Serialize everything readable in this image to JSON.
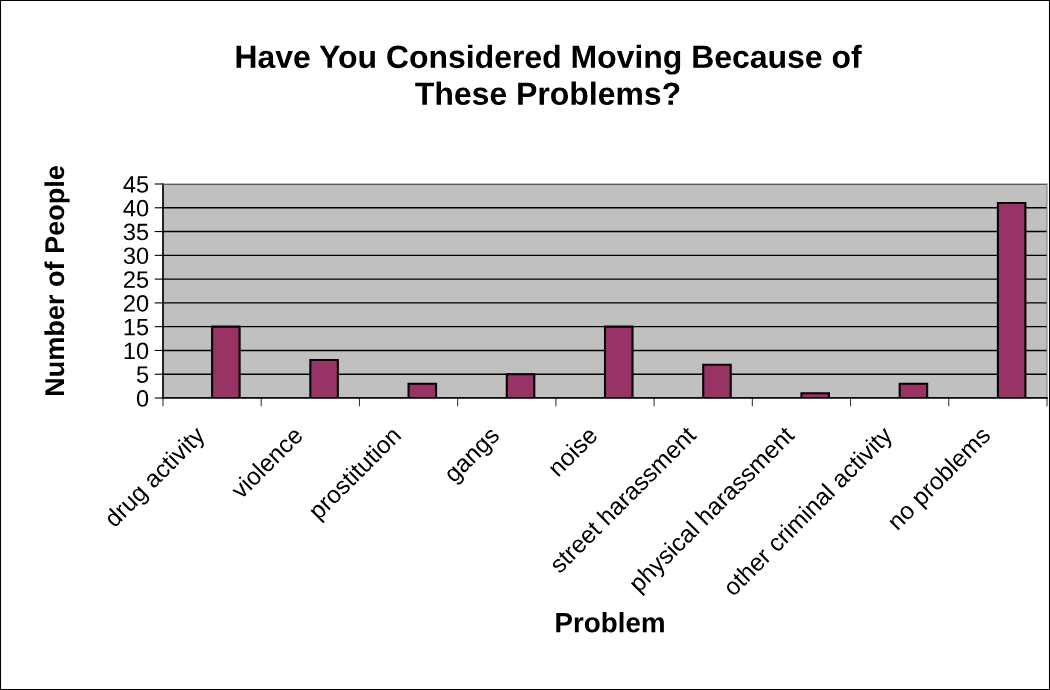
{
  "chart_data": {
    "type": "bar",
    "title": "Have You Considered Moving Because of\nThese Problems?",
    "xlabel": "Problem",
    "ylabel": "Number of People",
    "categories": [
      "drug activity",
      "violence",
      "prostitution",
      "gangs",
      "noise",
      "street harassment",
      "physical harassment",
      "other criminal activity",
      "no problems"
    ],
    "values": [
      15,
      8,
      3,
      5,
      15,
      7,
      1,
      3,
      41
    ],
    "color": "#993366",
    "ylim": [
      0,
      45
    ],
    "yticks": [
      0,
      5,
      10,
      15,
      20,
      25,
      30,
      35,
      40,
      45
    ],
    "grid": "y",
    "legend": false
  }
}
